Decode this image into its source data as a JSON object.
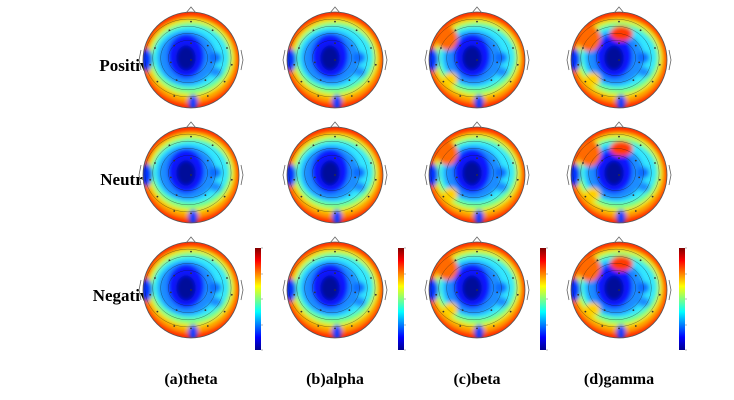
{
  "rows": [
    "Positive",
    "Neutral",
    "Negative"
  ],
  "columns": [
    "(a)theta",
    "(b)alpha",
    "(c)beta",
    "(d)gamma"
  ],
  "colormap": [
    "#00008f",
    "#0000ff",
    "#0080ff",
    "#00ffff",
    "#80ff80",
    "#ffff00",
    "#ff8000",
    "#ff0000",
    "#800000"
  ],
  "head_fill_color": "#ff2a00"
}
